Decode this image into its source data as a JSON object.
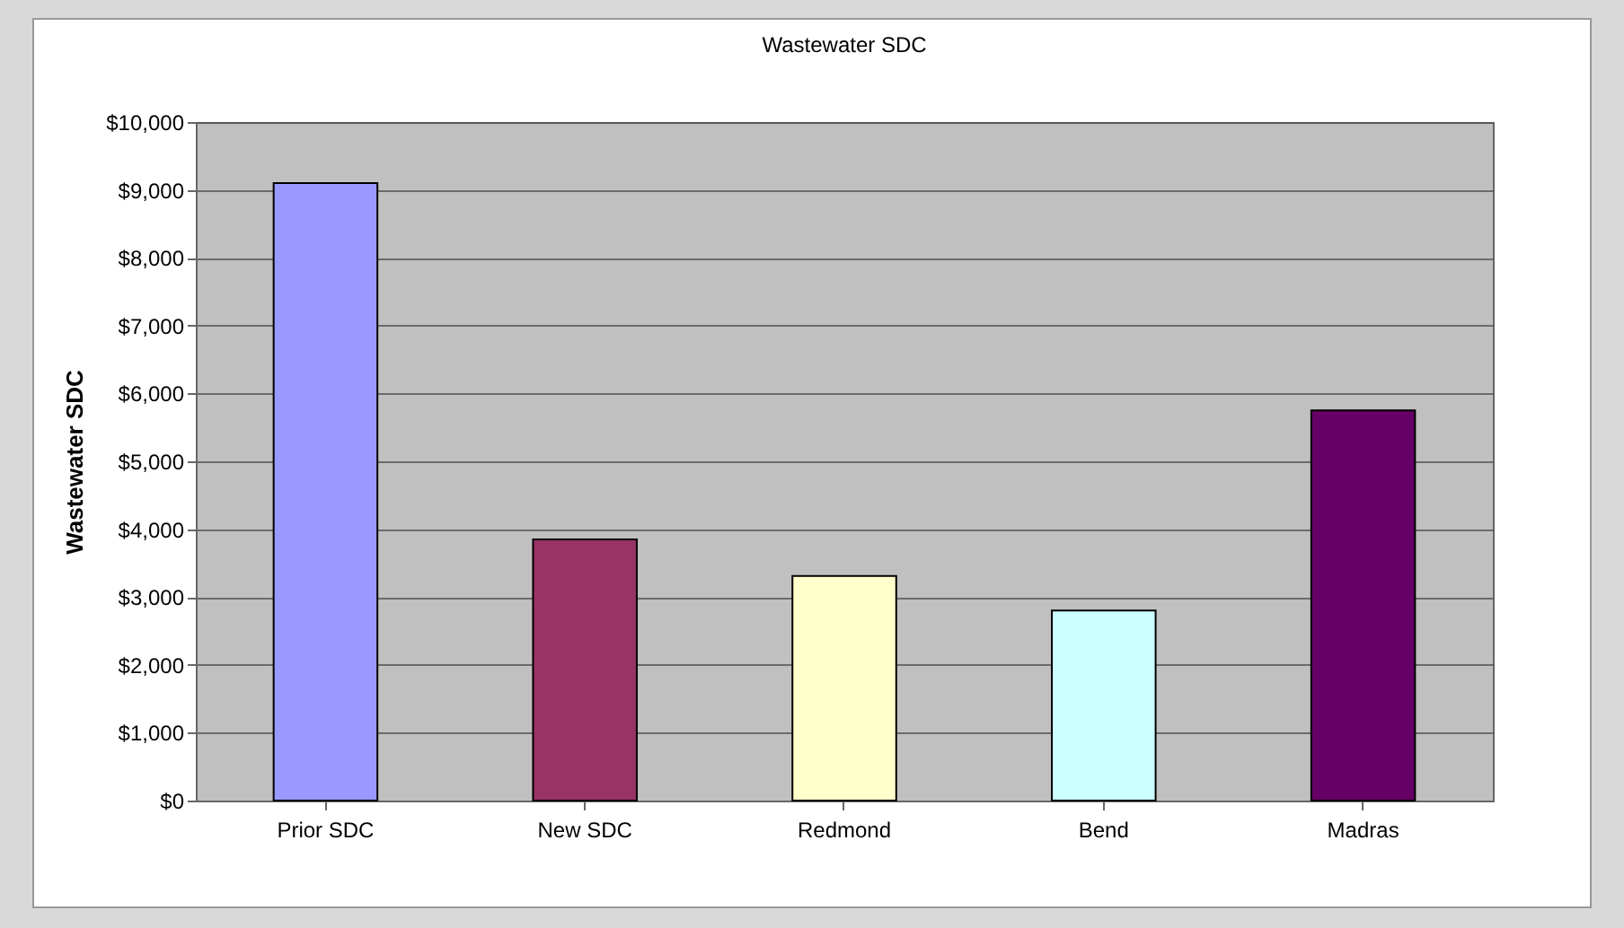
{
  "chart_data": {
    "type": "bar",
    "title": "Wastewater SDC",
    "ylabel": "Wastewater SDC",
    "categories": [
      "Prior SDC",
      "New SDC",
      "Redmond",
      "Bend",
      "Madras"
    ],
    "values": [
      9100,
      3850,
      3310,
      2800,
      5750
    ],
    "colors": [
      "#9999ff",
      "#993366",
      "#ffffcc",
      "#ccffff",
      "#660066"
    ],
    "ylim": [
      0,
      10000
    ],
    "yticks": [
      {
        "value": 0,
        "label": "$0"
      },
      {
        "value": 1000,
        "label": "$1,000"
      },
      {
        "value": 2000,
        "label": "$2,000"
      },
      {
        "value": 3000,
        "label": "$3,000"
      },
      {
        "value": 4000,
        "label": "$4,000"
      },
      {
        "value": 5000,
        "label": "$5,000"
      },
      {
        "value": 6000,
        "label": "$6,000"
      },
      {
        "value": 7000,
        "label": "$7,000"
      },
      {
        "value": 8000,
        "label": "$8,000"
      },
      {
        "value": 9000,
        "label": "$9,000"
      },
      {
        "value": 10000,
        "label": "$10,000"
      }
    ],
    "grid": "y"
  }
}
